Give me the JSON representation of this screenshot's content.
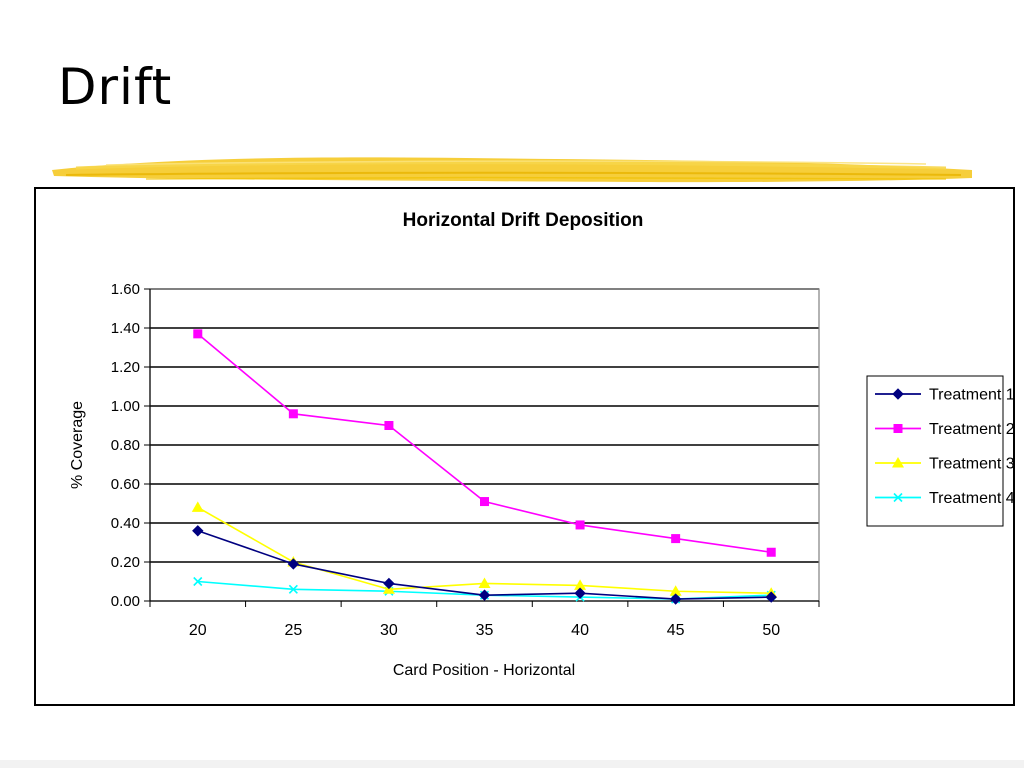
{
  "slide": {
    "title": "Drift"
  },
  "colors": {
    "accent_stroke": "#f5c518",
    "treatment_1": "#000080",
    "treatment_2": "#ff00ff",
    "treatment_3": "#ffff00",
    "treatment_4": "#00ffff"
  },
  "chart_data": {
    "type": "line",
    "title": "Horizontal Drift Deposition",
    "xlabel": "Card Position - Horizontal",
    "ylabel": "% Coverage",
    "categories": [
      "20",
      "25",
      "30",
      "35",
      "40",
      "45",
      "50"
    ],
    "ylim": [
      0,
      1.6
    ],
    "yticks": [
      "0.00",
      "0.20",
      "0.40",
      "0.60",
      "0.80",
      "1.00",
      "1.20",
      "1.40",
      "1.60"
    ],
    "grid": true,
    "legend_position": "right",
    "series": [
      {
        "name": "Treatment 1",
        "marker": "diamond",
        "color": "#000080",
        "values": [
          0.36,
          0.19,
          0.09,
          0.03,
          0.04,
          0.01,
          0.02
        ]
      },
      {
        "name": "Treatment 2",
        "marker": "square",
        "color": "#ff00ff",
        "values": [
          1.37,
          0.96,
          0.9,
          0.51,
          0.39,
          0.32,
          0.25
        ]
      },
      {
        "name": "Treatment 3",
        "marker": "triangle",
        "color": "#ffff00",
        "values": [
          0.48,
          0.2,
          0.06,
          0.09,
          0.08,
          0.05,
          0.04
        ]
      },
      {
        "name": "Treatment 4",
        "marker": "x",
        "color": "#00ffff",
        "values": [
          0.1,
          0.06,
          0.05,
          0.03,
          0.02,
          0.01,
          0.03
        ]
      }
    ]
  }
}
